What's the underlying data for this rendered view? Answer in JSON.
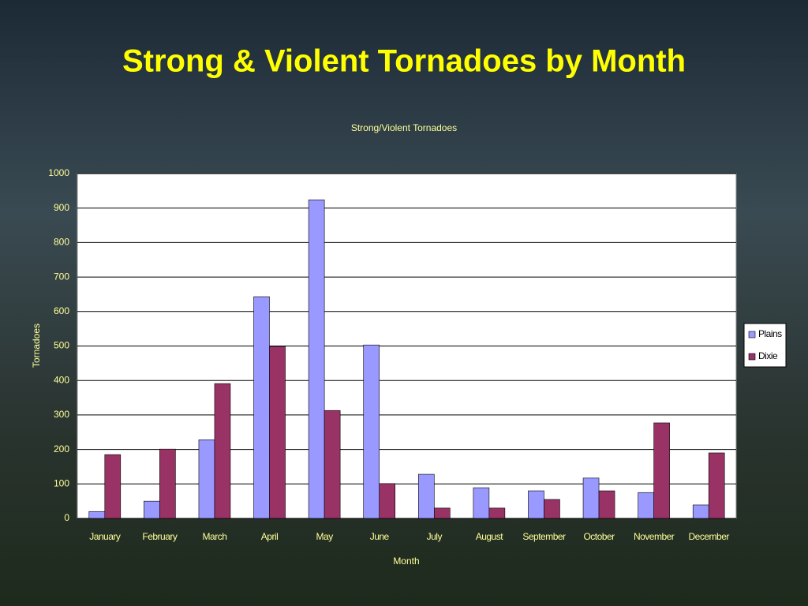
{
  "title": "Strong & Violent Tornadoes by Month",
  "chart_data": {
    "type": "bar",
    "title": "Strong/Violent Tornadoes",
    "xlabel": "Month",
    "ylabel": "Tornadoes",
    "categories": [
      "January",
      "February",
      "March",
      "April",
      "May",
      "June",
      "July",
      "August",
      "September",
      "October",
      "November",
      "December"
    ],
    "series": [
      {
        "name": "Plains",
        "color": "#9999ff",
        "values": [
          20,
          50,
          228,
          643,
          924,
          503,
          128,
          89,
          80,
          117,
          75,
          39
        ]
      },
      {
        "name": "Dixie",
        "color": "#993366",
        "values": [
          185,
          201,
          391,
          499,
          313,
          101,
          30,
          30,
          55,
          80,
          277,
          190
        ]
      }
    ],
    "ylim": [
      0,
      1000
    ],
    "yticks": [
      0,
      100,
      200,
      300,
      400,
      500,
      600,
      700,
      800,
      900,
      1000
    ],
    "grid": true,
    "legend": "right"
  }
}
